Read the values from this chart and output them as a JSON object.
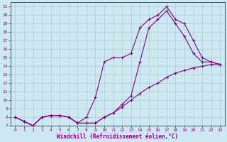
{
  "xlabel": "Windchill (Refroidissement éolien,°C)",
  "background_color": "#cce8f0",
  "line_color": "#880088",
  "grid_color": "#aacccc",
  "xlim": [
    -0.5,
    23.5
  ],
  "ylim": [
    7,
    21.5
  ],
  "xticks": [
    0,
    1,
    2,
    3,
    4,
    5,
    6,
    7,
    8,
    9,
    10,
    11,
    12,
    13,
    14,
    15,
    16,
    17,
    18,
    19,
    20,
    21,
    22,
    23
  ],
  "yticks": [
    7,
    8,
    9,
    10,
    11,
    12,
    13,
    14,
    15,
    16,
    17,
    18,
    19,
    20,
    21
  ],
  "line1_x": [
    0,
    1,
    2,
    3,
    4,
    5,
    6,
    7,
    8,
    9,
    10,
    11,
    12,
    13,
    14,
    15,
    16,
    17,
    18,
    19,
    20,
    21,
    22,
    23
  ],
  "line1_y": [
    8,
    7.5,
    7.0,
    8.0,
    8.2,
    8.2,
    8.0,
    7.3,
    7.3,
    7.3,
    8.0,
    8.5,
    9.5,
    10.5,
    14.5,
    18.5,
    19.5,
    20.5,
    19.0,
    17.5,
    15.5,
    14.5,
    14.5,
    14.2
  ],
  "line2_x": [
    0,
    1,
    2,
    3,
    4,
    5,
    6,
    7,
    8,
    9,
    10,
    11,
    12,
    13,
    14,
    15,
    16,
    17,
    18,
    19,
    20,
    21,
    22,
    23
  ],
  "line2_y": [
    8,
    7.5,
    7.0,
    8.0,
    8.2,
    8.2,
    8.0,
    7.3,
    8.0,
    10.3,
    14.5,
    15.0,
    15.0,
    15.5,
    18.5,
    19.5,
    20.0,
    21.0,
    19.5,
    19.0,
    17.0,
    15.0,
    14.5,
    14.2
  ],
  "line3_x": [
    0,
    1,
    2,
    3,
    4,
    5,
    6,
    7,
    8,
    9,
    10,
    11,
    12,
    13,
    14,
    15,
    16,
    17,
    18,
    19,
    20,
    21,
    22,
    23
  ],
  "line3_y": [
    8,
    7.5,
    7.0,
    8.0,
    8.2,
    8.2,
    8.0,
    7.3,
    7.3,
    7.3,
    8.0,
    8.5,
    9.2,
    10.0,
    10.8,
    11.5,
    12.0,
    12.7,
    13.2,
    13.5,
    13.8,
    14.0,
    14.2,
    14.2
  ],
  "marker": "+",
  "markersize": 3,
  "linewidth": 0.8
}
